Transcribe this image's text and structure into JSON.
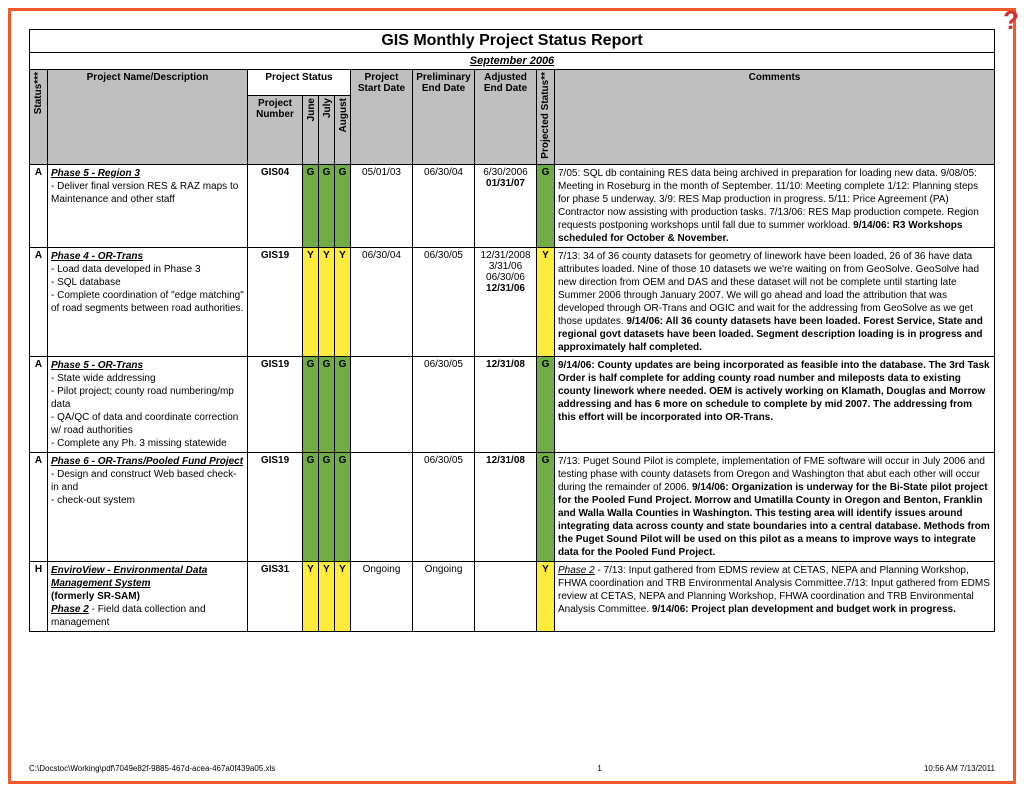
{
  "colors": {
    "green": "#70ad47",
    "yellow": "#ffeb3b",
    "gray_header": "#bfbfbf",
    "border_orange": "#f05a28"
  },
  "title": "GIS Monthly Project Status Report",
  "subtitle": "September 2006",
  "group_header": "Project Status",
  "headers": {
    "status": "Status***",
    "desc": "Project Name/Description",
    "pnum": "Project Number",
    "m1": "June",
    "m2": "July",
    "m3": "August",
    "start": "Project Start Date",
    "prelim": "Preliminary End Date",
    "adj": "Adjusted End Date",
    "proj": "Projected Status**",
    "comments": "Comments"
  },
  "rows": [
    {
      "status": "A",
      "phase": "Phase 5 - Region 3",
      "desc": "  - Deliver final version RES & RAZ maps to Maintenance and other staff",
      "pnum": "GIS04",
      "m": [
        "G",
        "G",
        "G"
      ],
      "mcolor": "green",
      "start": "05/01/03",
      "prelim": "06/30/04",
      "adj": "6/30/2006",
      "adj_bold": "01/31/07",
      "proj": "G",
      "projcolor": "green",
      "comment_plain": "7/05: SQL db containing RES data being archived in preparation for loading new data.  9/08/05:  Meeting in Roseburg in the month of September.  11/10: Meeting complete 1/12: Planning steps for phase 5 underway.  3/9:  RES Map production in progress. 5/11: Price Agreement (PA) Contractor now assisting with production tasks.  7/13/06: RES Map production compete. Region requests postponing workshops until fall due to summer workload. ",
      "comment_bold": "9/14/06: R3 Workshops scheduled for October & November."
    },
    {
      "status": "A",
      "phase": "Phase 4 - OR-Trans",
      "desc": "  - Load data developed in Phase 3\n  - SQL database\n  - Complete coordination of \"edge matching\" of road segments between road authorities.",
      "pnum": "GIS19",
      "m": [
        "Y",
        "Y",
        "Y"
      ],
      "mcolor": "yellow",
      "start": "06/30/04",
      "prelim": "06/30/05",
      "adj": "12/31/2008\n3/31/06\n06/30/06",
      "adj_bold": "12/31/06",
      "proj": "Y",
      "projcolor": "yellow",
      "comment_plain": "7/13: 34 of 36 county datasets for geometry of linework have been loaded, 26 of 36 have data attributes loaded.  Nine of those 10 datasets we we're waiting on from GeoSolve.  GeoSolve had new direction from OEM and DAS and these dataset will not be complete until starting late Summer 2006 through January 2007.  We will go ahead and load the attribution that was developed through OR-Trans and OGIC and wait for the addressing from GeoSolve as we get those updates.  ",
      "comment_bold": "9/14/06: All 36 county datasets have been loaded.  Forest Service, State and regional govt datasets have been loaded.  Segment description loading is in progress and approximately half completed."
    },
    {
      "status": "A",
      "phase": " Phase 5 - OR-Trans",
      "desc": "  - State wide addressing\n  - Pilot project; county road numbering/mp data\n  - QA/QC of data and coordinate correction w/ road authorities\n  - Complete any Ph. 3 missing statewide",
      "pnum": "GIS19",
      "m": [
        "G",
        "G",
        "G"
      ],
      "mcolor": "green",
      "start": "",
      "prelim": "06/30/05",
      "adj": "",
      "adj_bold": "12/31/08",
      "proj": "G",
      "projcolor": "green",
      "comment_plain": "",
      "comment_bold": "9/14/06: County updates are being incorporated as feasible into the database.  The 3rd Task Order is half complete for adding county road number and mileposts data to existing county linework where needed.  OEM is actively working on Klamath, Douglas and Morrow addressing and has 6 more on schedule to complete by mid 2007.  The addressing from this effort will be incorporated into OR-Trans."
    },
    {
      "status": "A",
      "phase": "Phase 6 - OR-Trans/Pooled Fund Project",
      "desc": "  - Design and construct Web based check-in and\n  - check-out system",
      "pnum": "GIS19",
      "m": [
        "G",
        "G",
        "G"
      ],
      "mcolor": "green",
      "start": "",
      "prelim": "06/30/05",
      "adj": "",
      "adj_bold": "12/31/08",
      "proj": "G",
      "projcolor": "green",
      "comment_plain": "7/13: Puget Sound Pilot is complete, implementation of FME software will occur in July 2006 and  testing phase with county datasets from Oregon and Washington that abut each other will occur during the remainder of 2006. ",
      "comment_bold": "9/14/06: Organization is underway for the Bi-State pilot project for the Pooled Fund Project.  Morrow and Umatilla County in Oregon and Benton, Franklin and Walla Walla Counties in Washington.  This testing area will identify issues around integrating data across county and state boundaries into a central database.  Methods from the Puget Sound Pilot will be used on this pilot as a means to improve ways to integrate data for the Pooled Fund Project."
    },
    {
      "status": "H",
      "phase": "EnviroView - Environmental Data Management System",
      "desc_bold": "(formerly SR-SAM)",
      "phase2": "Phase 2",
      "desc2": " - Field data collection and management",
      "pnum": "GIS31",
      "m": [
        "Y",
        "Y",
        "Y"
      ],
      "mcolor": "yellow",
      "start": "Ongoing",
      "prelim": "Ongoing",
      "adj": "",
      "adj_bold": "",
      "proj": "Y",
      "projcolor": "yellow",
      "comment_prefix_u": "Phase 2",
      "comment_plain": " - 7/13: Input gathered from EDMS review at CETAS, NEPA and Planning Workshop, FHWA coordination and TRB Environmental Analysis Committee.7/13: Input gathered from EDMS review at CETAS, NEPA and Planning Workshop, FHWA coordination and TRB Environmental Analysis Committee. ",
      "comment_bold": "9/14/06: Project plan development and budget work in progress."
    }
  ],
  "footer": {
    "path": "C:\\Docstoc\\Working\\pdf\\7049e82f-9885-467d-acea-467a0f439a05.xls",
    "page": "1",
    "stamp": "10:56 AM   7/13/2011"
  }
}
